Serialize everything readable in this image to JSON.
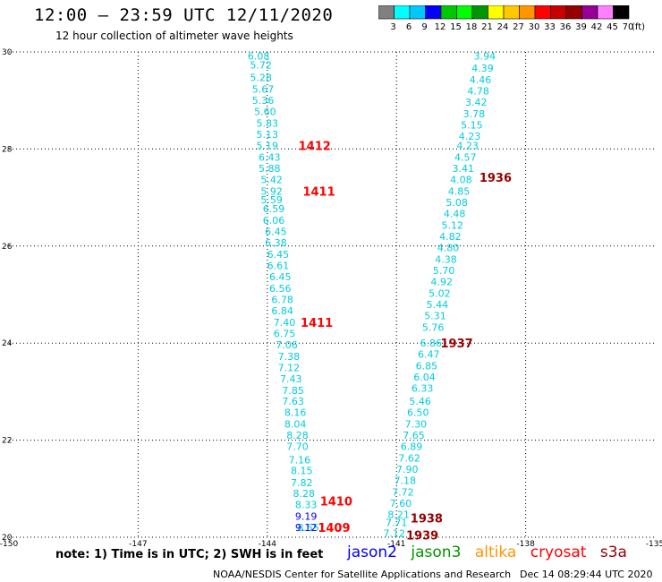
{
  "header": {
    "title": "12:00 — 23:59 UTC 12/11/2020",
    "subtitle": "12 hour collection of altimeter wave heights"
  },
  "colorbar": {
    "unit": "(ft)",
    "labels": [
      "3",
      "6",
      "9",
      "12",
      "15",
      "18",
      "21",
      "24",
      "27",
      "30",
      "33",
      "36",
      "39",
      "42",
      "45",
      "70"
    ],
    "colors": [
      "#808080",
      "#00ffff",
      "#00c8ff",
      "#0000ff",
      "#00c800",
      "#00ff00",
      "#009600",
      "#ffff00",
      "#ffc800",
      "#ff9600",
      "#ff0000",
      "#c80000",
      "#960000",
      "#960096",
      "#ff80ff",
      "#000000"
    ]
  },
  "footer": {
    "note": "note: 1) Time is in UTC; 2) SWH is in feet",
    "credit": "NOAA/NESDIS Center for Satellite Applications and Research",
    "timestamp": "Dec 14 08:29:44 UTC 2020"
  },
  "satellites": [
    {
      "name": "jason2",
      "color": "#0000ff"
    },
    {
      "name": "jason3",
      "color": "#009600"
    },
    {
      "name": "altika",
      "color": "#ff9600"
    },
    {
      "name": "cryosat",
      "color": "#ff0000"
    },
    {
      "name": "s3a",
      "color": "#960000"
    }
  ],
  "chart_data": {
    "type": "scatter",
    "xlim": [
      -150,
      -135
    ],
    "ylim": [
      20,
      30
    ],
    "x_ticks": [
      "-150",
      "-147",
      "-144",
      "-141",
      "-138",
      "-135"
    ],
    "y_ticks": [
      "20",
      "22",
      "24",
      "26",
      "28",
      "30"
    ],
    "grid": true,
    "tracks": [
      {
        "color": "#00ccdd",
        "points": [
          [
            -144.2,
            29.92,
            "6.08"
          ],
          [
            -144.15,
            29.73,
            "5.72"
          ],
          [
            -144.15,
            29.47,
            "5.28"
          ],
          [
            -144.1,
            29.23,
            "5.67"
          ],
          [
            -144.1,
            29.0,
            "5.36"
          ],
          [
            -144.05,
            28.77,
            "5.60"
          ],
          [
            -144.0,
            28.53,
            "5.83"
          ],
          [
            -144.0,
            28.3,
            "5.13"
          ],
          [
            -144.0,
            28.07,
            "5.19"
          ],
          [
            -143.95,
            27.83,
            "6.43"
          ],
          [
            -143.95,
            27.6,
            "5.88"
          ],
          [
            -143.9,
            27.37,
            "5.42"
          ],
          [
            -143.9,
            27.13,
            "5.92"
          ],
          [
            -143.9,
            26.96,
            "5.59"
          ],
          [
            -143.85,
            26.77,
            "6.59"
          ],
          [
            -143.85,
            26.53,
            "6.06"
          ],
          [
            -143.8,
            26.3,
            "6.45"
          ],
          [
            -143.8,
            26.07,
            "6.38"
          ],
          [
            -143.75,
            25.83,
            "6.45"
          ],
          [
            -143.75,
            25.6,
            "6.61"
          ],
          [
            -143.7,
            25.37,
            "6.45"
          ],
          [
            -143.7,
            25.13,
            "6.56"
          ],
          [
            -143.65,
            24.9,
            "6.78"
          ],
          [
            -143.65,
            24.67,
            "6.84"
          ],
          [
            -143.6,
            24.43,
            "7.40"
          ],
          [
            -143.6,
            24.2,
            "6.75"
          ],
          [
            -143.55,
            23.97,
            "7.06"
          ],
          [
            -143.5,
            23.73,
            "7.38"
          ],
          [
            -143.5,
            23.5,
            "7.12"
          ],
          [
            -143.45,
            23.27,
            "7.43"
          ],
          [
            -143.4,
            23.03,
            "7.85"
          ],
          [
            -143.4,
            22.8,
            "7.63"
          ],
          [
            -143.35,
            22.57,
            "8.16"
          ],
          [
            -143.35,
            22.33,
            "8.04"
          ],
          [
            -143.3,
            22.1,
            "8.28"
          ],
          [
            -143.3,
            21.87,
            "7.70"
          ],
          [
            -143.25,
            21.6,
            "7.16"
          ],
          [
            -143.2,
            21.37,
            "8.15"
          ],
          [
            -143.2,
            21.13,
            "7.82"
          ],
          [
            -143.15,
            20.9,
            "8.28"
          ],
          [
            -143.1,
            20.67,
            "8.33"
          ],
          [
            -143.05,
            20.2,
            "8.55"
          ]
        ]
      },
      {
        "color": "#0000ff",
        "points": [
          [
            -143.1,
            20.43,
            "9.19"
          ],
          [
            -143.1,
            20.2,
            "9.12"
          ]
        ]
      },
      {
        "color": "#00ccdd",
        "points": [
          [
            -138.95,
            29.92,
            "3.94"
          ],
          [
            -139.0,
            29.67,
            "4.39"
          ],
          [
            -139.05,
            29.43,
            "4.46"
          ],
          [
            -139.1,
            29.2,
            "4.78"
          ],
          [
            -139.15,
            28.97,
            "3.42"
          ],
          [
            -139.2,
            28.73,
            "3.78"
          ],
          [
            -139.25,
            28.5,
            "5.15"
          ],
          [
            -139.3,
            28.27,
            "4.23"
          ],
          [
            -139.35,
            28.07,
            "4.23"
          ],
          [
            -139.4,
            27.83,
            "4.57"
          ],
          [
            -139.45,
            27.6,
            "3.41"
          ],
          [
            -139.5,
            27.37,
            "4.08"
          ],
          [
            -139.55,
            27.13,
            "4.85"
          ],
          [
            -139.6,
            26.9,
            "5.08"
          ],
          [
            -139.65,
            26.67,
            "4.48"
          ],
          [
            -139.7,
            26.43,
            "5.12"
          ],
          [
            -139.75,
            26.2,
            "4.82"
          ],
          [
            -139.8,
            25.97,
            "4.80"
          ],
          [
            -139.85,
            25.73,
            "4.38"
          ],
          [
            -139.9,
            25.5,
            "5.70"
          ],
          [
            -139.95,
            25.27,
            "4.92"
          ],
          [
            -140.0,
            25.03,
            "5.02"
          ],
          [
            -140.05,
            24.8,
            "5.44"
          ],
          [
            -140.1,
            24.57,
            "5.31"
          ],
          [
            -140.15,
            24.33,
            "5.76"
          ],
          [
            -140.2,
            24.0,
            "6.86"
          ],
          [
            -140.25,
            23.77,
            "6.47"
          ],
          [
            -140.3,
            23.53,
            "6.85"
          ],
          [
            -140.35,
            23.3,
            "6.04"
          ],
          [
            -140.4,
            23.07,
            "6.33"
          ],
          [
            -140.45,
            22.8,
            "5.46"
          ],
          [
            -140.5,
            22.57,
            "6.50"
          ],
          [
            -140.55,
            22.33,
            "7.30"
          ],
          [
            -140.6,
            22.1,
            "7.65"
          ],
          [
            -140.65,
            21.87,
            "6.89"
          ],
          [
            -140.7,
            21.63,
            "7.62"
          ],
          [
            -140.75,
            21.4,
            "7.90"
          ],
          [
            -140.8,
            21.17,
            "7.18"
          ],
          [
            -140.85,
            20.93,
            "7.72"
          ],
          [
            -140.9,
            20.7,
            "7.60"
          ],
          [
            -140.95,
            20.47,
            "8.21"
          ],
          [
            -141.0,
            20.3,
            "7.71"
          ],
          [
            -141.05,
            20.08,
            "7.12"
          ]
        ]
      }
    ],
    "pass_labels": [
      [
        -142.9,
        28.07,
        "1412",
        "#ff0000"
      ],
      [
        -142.8,
        27.13,
        "1411",
        "#ff0000"
      ],
      [
        -142.85,
        24.43,
        "1411",
        "#ff0000"
      ],
      [
        -142.4,
        20.75,
        "1410",
        "#ff0000"
      ],
      [
        -142.45,
        20.2,
        "1409",
        "#ff0000"
      ],
      [
        -138.7,
        27.42,
        "1936",
        "#960000"
      ],
      [
        -139.6,
        24.0,
        "1937",
        "#960000"
      ],
      [
        -140.3,
        20.4,
        "1938",
        "#960000"
      ],
      [
        -140.4,
        20.05,
        "1939",
        "#960000"
      ]
    ]
  }
}
